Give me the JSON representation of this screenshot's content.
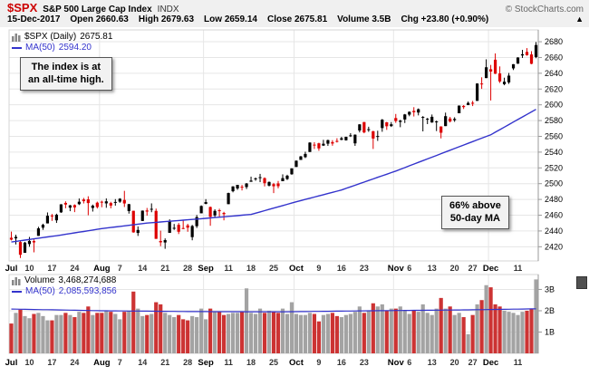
{
  "header": {
    "symbol": "$SPX",
    "name": "S&P 500 Large Cap Index",
    "exchange": "INDX",
    "credit": "© StockCharts.com",
    "date": "15-Dec-2017",
    "quote": {
      "open_label": "Open",
      "open": "2660.63",
      "high_label": "High",
      "high": "2679.63",
      "low_label": "Low",
      "low": "2659.14",
      "close_label": "Close",
      "close": "2675.81",
      "volume_label": "Volume",
      "volume": "3.5B",
      "chg_label": "Chg",
      "chg_value": "+23.80 (+0.90%)",
      "arrow": "▲"
    }
  },
  "legend": {
    "price_label": "$SPX (Daily)",
    "price_value": "2675.81",
    "ma_label": "MA(50)",
    "ma_value": "2594.20"
  },
  "volume_legend": {
    "label": "Volume",
    "value": "3,468,274,688",
    "ma_label": "MA(50)",
    "ma_value": "2,085,593,856"
  },
  "annotations": {
    "ath_line1": "The index is at",
    "ath_line2": "an all-time high.",
    "ma_line1": "66% above",
    "ma_line2": "50-day MA"
  },
  "colors": {
    "up": "#000000",
    "down": "#dd0000",
    "vol_up": "#a3a3a3",
    "vol_down": "#cc3333",
    "ma": "#3333cc",
    "grid": "#e6e6e6",
    "axis": "#999999",
    "symbol_red": "#cc0000",
    "header_bg": "#f0f0f0"
  },
  "chart_data": {
    "type": "candlestick",
    "symbol": "$SPX",
    "period": "Daily",
    "price_axis": {
      "min": 2402,
      "max": 2695,
      "grid_min": 2420,
      "grid_max": 2680,
      "grid_step": 20
    },
    "volume_axis": {
      "max": 3.7,
      "grid": [
        1,
        2,
        3
      ],
      "grid_labels": [
        "1B",
        "2B",
        "3B"
      ],
      "unit": "billions of shares"
    },
    "x_ticks": [
      {
        "i": 0,
        "l": "Jul",
        "m": true
      },
      {
        "i": 4,
        "l": "10"
      },
      {
        "i": 9,
        "l": "17"
      },
      {
        "i": 14,
        "l": "24"
      },
      {
        "i": 20,
        "l": "Aug",
        "m": true
      },
      {
        "i": 24,
        "l": "7"
      },
      {
        "i": 29,
        "l": "14"
      },
      {
        "i": 34,
        "l": "21"
      },
      {
        "i": 39,
        "l": "28"
      },
      {
        "i": 43,
        "l": "Sep",
        "m": true
      },
      {
        "i": 48,
        "l": "11"
      },
      {
        "i": 53,
        "l": "18"
      },
      {
        "i": 58,
        "l": "25"
      },
      {
        "i": 63,
        "l": "Oct",
        "m": true
      },
      {
        "i": 68,
        "l": "9"
      },
      {
        "i": 73,
        "l": "16"
      },
      {
        "i": 78,
        "l": "23"
      },
      {
        "i": 85,
        "l": "Nov",
        "m": true
      },
      {
        "i": 88,
        "l": "6"
      },
      {
        "i": 93,
        "l": "13"
      },
      {
        "i": 98,
        "l": "20"
      },
      {
        "i": 102,
        "l": "27"
      },
      {
        "i": 106,
        "l": "Dec",
        "m": true
      },
      {
        "i": 112,
        "l": "11"
      }
    ],
    "month_lines": [
      0,
      20,
      43,
      63,
      85,
      106
    ],
    "ohlcv_format": [
      "open",
      "high",
      "low",
      "close",
      "volume_billions"
    ],
    "ohlcv": [
      [
        2431.4,
        2439.2,
        2428.0,
        2429.0,
        1.4
      ],
      [
        2430.6,
        2435.2,
        2422.9,
        2432.5,
        1.9
      ],
      [
        2426.0,
        2427.3,
        2405.7,
        2409.8,
        2.05
      ],
      [
        2412.3,
        2426.2,
        2412.3,
        2425.2,
        1.75
      ],
      [
        2423.4,
        2432.4,
        2420.0,
        2427.4,
        1.65
      ],
      [
        2427.2,
        2429.4,
        2412.9,
        2425.5,
        1.85
      ],
      [
        2433.8,
        2445.3,
        2433.8,
        2443.3,
        1.9
      ],
      [
        2444.2,
        2449.2,
        2441.4,
        2447.8,
        1.75
      ],
      [
        2449.6,
        2463.5,
        2449.6,
        2459.3,
        1.55
      ],
      [
        2459.6,
        2461.6,
        2452.8,
        2459.1,
        1.55
      ],
      [
        2453.5,
        2461.9,
        2450.2,
        2460.6,
        1.8
      ],
      [
        2463.6,
        2474.0,
        2463.0,
        2473.8,
        1.8
      ],
      [
        2475.6,
        2477.6,
        2468.8,
        2473.5,
        1.9
      ],
      [
        2469.6,
        2473.0,
        2465.1,
        2472.5,
        1.8
      ],
      [
        2472.8,
        2473.7,
        2463.9,
        2469.9,
        1.7
      ],
      [
        2474.0,
        2481.2,
        2472.9,
        2477.1,
        1.95
      ],
      [
        2479.9,
        2481.9,
        2474.9,
        2477.8,
        1.9
      ],
      [
        2480.1,
        2484.0,
        2459.9,
        2475.4,
        2.2
      ],
      [
        2469.2,
        2473.5,
        2464.6,
        2472.1,
        1.8
      ],
      [
        2475.9,
        2477.2,
        2468.5,
        2470.3,
        1.9
      ],
      [
        2477.1,
        2478.4,
        2470.1,
        2476.3,
        1.9
      ],
      [
        2475.0,
        2481.3,
        2469.4,
        2477.6,
        2.0
      ],
      [
        2475.4,
        2477.0,
        2468.7,
        2472.2,
        1.95
      ],
      [
        2476.0,
        2480.4,
        2472.1,
        2476.8,
        1.85
      ],
      [
        2477.2,
        2481.6,
        2475.7,
        2480.9,
        1.6
      ],
      [
        2479.3,
        2490.9,
        2470.4,
        2474.9,
        1.95
      ],
      [
        2465.3,
        2474.4,
        2462.0,
        2474.0,
        2.0
      ],
      [
        2465.6,
        2465.6,
        2437.8,
        2438.2,
        2.9
      ],
      [
        2437.5,
        2445.8,
        2433.7,
        2441.3,
        2.1
      ],
      [
        2452.7,
        2466.0,
        2452.7,
        2465.8,
        1.75
      ],
      [
        2466.0,
        2469.2,
        2459.4,
        2464.6,
        1.8
      ],
      [
        2468.1,
        2475.0,
        2463.8,
        2468.1,
        1.85
      ],
      [
        2465.5,
        2468.4,
        2430.0,
        2430.0,
        2.4
      ],
      [
        2427.3,
        2440.4,
        2420.7,
        2425.6,
        2.3
      ],
      [
        2425.4,
        2430.6,
        2417.4,
        2428.4,
        1.9
      ],
      [
        2437.6,
        2454.8,
        2437.6,
        2452.5,
        1.8
      ],
      [
        2444.0,
        2448.9,
        2441.4,
        2444.0,
        1.7
      ],
      [
        2447.8,
        2450.1,
        2436.1,
        2439.0,
        1.8
      ],
      [
        2443.7,
        2453.8,
        2442.4,
        2443.1,
        1.6
      ],
      [
        2447.1,
        2449.1,
        2439.0,
        2444.2,
        1.55
      ],
      [
        2432.2,
        2447.7,
        2428.2,
        2446.3,
        1.75
      ],
      [
        2446.1,
        2460.3,
        2443.8,
        2457.6,
        1.7
      ],
      [
        2462.4,
        2472.5,
        2462.4,
        2471.7,
        2.1
      ],
      [
        2474.4,
        2480.4,
        2473.8,
        2476.6,
        1.6
      ],
      [
        2470.4,
        2471.0,
        2446.6,
        2457.9,
        2.1
      ],
      [
        2459.7,
        2467.5,
        2456.5,
        2465.5,
        1.95
      ],
      [
        2466.3,
        2468.2,
        2457.1,
        2465.1,
        1.95
      ],
      [
        2462.9,
        2464.3,
        2453.5,
        2461.4,
        1.8
      ],
      [
        2474.0,
        2488.6,
        2474.0,
        2488.1,
        1.85
      ],
      [
        2490.4,
        2496.8,
        2489.0,
        2496.5,
        1.9
      ],
      [
        2493.9,
        2498.5,
        2492.1,
        2498.4,
        1.9
      ],
      [
        2496.1,
        2498.4,
        2491.4,
        2495.6,
        1.95
      ],
      [
        2495.7,
        2500.8,
        2493.2,
        2500.2,
        3.05
      ],
      [
        2502.4,
        2508.9,
        2502.4,
        2503.9,
        1.9
      ],
      [
        2506.1,
        2507.8,
        2503.6,
        2506.7,
        1.85
      ],
      [
        2507.1,
        2512.4,
        2501.9,
        2508.2,
        2.1
      ],
      [
        2507.0,
        2508.0,
        2496.5,
        2500.6,
        1.9
      ],
      [
        2497.5,
        2502.7,
        2496.5,
        2502.2,
        2.0
      ],
      [
        2499.4,
        2501.0,
        2488.0,
        2496.7,
        1.95
      ],
      [
        2500.3,
        2503.4,
        2494.1,
        2496.8,
        1.9
      ],
      [
        2503.1,
        2511.8,
        2503.1,
        2507.0,
        2.1
      ],
      [
        2505.9,
        2511.3,
        2504.6,
        2510.1,
        1.85
      ],
      [
        2511.9,
        2519.4,
        2511.3,
        2519.4,
        2.4
      ],
      [
        2521.2,
        2529.5,
        2521.2,
        2529.1,
        1.85
      ],
      [
        2530.1,
        2535.1,
        2530.1,
        2534.6,
        1.8
      ],
      [
        2533.6,
        2540.5,
        2532.4,
        2537.7,
        1.8
      ],
      [
        2540.2,
        2552.5,
        2540.2,
        2552.1,
        1.9
      ],
      [
        2549.5,
        2552.6,
        2544.0,
        2549.3,
        1.85
      ],
      [
        2551.2,
        2551.9,
        2541.7,
        2544.7,
        1.5
      ],
      [
        2548.3,
        2555.6,
        2547.8,
        2550.6,
        1.8
      ],
      [
        2550.7,
        2555.8,
        2547.9,
        2555.2,
        1.85
      ],
      [
        2552.7,
        2555.2,
        2548.1,
        2550.9,
        1.9
      ],
      [
        2554.2,
        2557.6,
        2552.2,
        2553.2,
        1.75
      ],
      [
        2555.6,
        2559.4,
        2555.1,
        2557.6,
        1.7
      ],
      [
        2555.0,
        2559.6,
        2554.6,
        2559.4,
        1.8
      ],
      [
        2560.9,
        2564.0,
        2559.2,
        2561.3,
        1.85
      ],
      [
        2551.1,
        2562.5,
        2547.9,
        2562.1,
        1.95
      ],
      [
        2567.4,
        2575.4,
        2565.0,
        2575.2,
        2.2
      ],
      [
        2578.1,
        2578.3,
        2563.9,
        2565.0,
        1.9
      ],
      [
        2568.2,
        2572.2,
        2565.7,
        2569.1,
        2.0
      ],
      [
        2566.5,
        2567.0,
        2544.0,
        2557.2,
        2.35
      ],
      [
        2560.0,
        2567.1,
        2554.2,
        2560.4,
        2.2
      ],
      [
        2570.5,
        2582.0,
        2565.8,
        2581.1,
        2.3
      ],
      [
        2577.8,
        2578.3,
        2568.2,
        2572.8,
        2.0
      ],
      [
        2573.0,
        2578.1,
        2571.9,
        2575.3,
        2.1
      ],
      [
        2583.2,
        2588.4,
        2577.1,
        2579.4,
        2.1
      ],
      [
        2578.3,
        2581.0,
        2571.6,
        2579.9,
        2.2
      ],
      [
        2581.4,
        2588.4,
        2576.9,
        2587.8,
        2.0
      ],
      [
        2587.5,
        2591.7,
        2585.5,
        2591.1,
        1.85
      ],
      [
        2592.3,
        2597.0,
        2585.2,
        2590.6,
        2.0
      ],
      [
        2590.2,
        2595.4,
        2586.6,
        2594.4,
        1.95
      ],
      [
        2584.2,
        2585.7,
        2566.3,
        2584.6,
        2.3
      ],
      [
        2582.0,
        2583.4,
        2575.5,
        2582.3,
        1.9
      ],
      [
        2577.6,
        2587.7,
        2577.2,
        2584.8,
        1.8
      ],
      [
        2578.0,
        2580.0,
        2566.7,
        2578.9,
        2.1
      ],
      [
        2572.5,
        2572.8,
        2557.4,
        2564.6,
        2.6
      ],
      [
        2573.0,
        2590.1,
        2573.0,
        2585.6,
        2.1
      ],
      [
        2582.6,
        2584.7,
        2577.6,
        2578.9,
        2.2
      ],
      [
        2580.6,
        2584.2,
        2578.4,
        2582.1,
        1.8
      ],
      [
        2589.3,
        2599.2,
        2589.3,
        2599.0,
        1.9
      ],
      [
        2598.6,
        2599.6,
        2594.7,
        2597.1,
        1.7
      ],
      [
        2599.6,
        2604.2,
        2599.6,
        2602.4,
        0.9
      ],
      [
        2602.6,
        2605.0,
        2598.4,
        2601.4,
        1.8
      ],
      [
        2605.0,
        2627.3,
        2605.0,
        2627.0,
        2.3
      ],
      [
        2627.0,
        2634.9,
        2620.2,
        2626.1,
        2.5
      ],
      [
        2633.9,
        2657.7,
        2633.9,
        2647.6,
        3.2
      ],
      [
        2645.1,
        2650.6,
        2605.5,
        2642.2,
        3.1
      ],
      [
        2657.2,
        2665.2,
        2639.0,
        2639.4,
        2.3
      ],
      [
        2639.8,
        2648.7,
        2627.7,
        2629.6,
        2.2
      ],
      [
        2626.2,
        2634.4,
        2624.8,
        2629.3,
        2.0
      ],
      [
        2628.4,
        2640.4,
        2626.5,
        2637.0,
        1.95
      ],
      [
        2646.2,
        2651.6,
        2644.1,
        2651.5,
        1.9
      ],
      [
        2652.2,
        2660.3,
        2651.9,
        2660.0,
        1.8
      ],
      [
        2662.6,
        2669.7,
        2659.4,
        2664.1,
        1.95
      ],
      [
        2667.1,
        2671.9,
        2662.3,
        2662.9,
        2.0
      ],
      [
        2663.9,
        2668.0,
        2651.5,
        2652.0,
        2.1
      ],
      [
        2660.6,
        2679.6,
        2659.1,
        2675.8,
        3.47
      ]
    ],
    "ma50_price": [
      [
        0,
        2426
      ],
      [
        10,
        2434
      ],
      [
        20,
        2443
      ],
      [
        30,
        2450
      ],
      [
        43,
        2456
      ],
      [
        53,
        2461
      ],
      [
        63,
        2477
      ],
      [
        73,
        2492
      ],
      [
        85,
        2516
      ],
      [
        95,
        2538
      ],
      [
        106,
        2562
      ],
      [
        116,
        2594.2
      ]
    ],
    "ma50_volume": [
      [
        0,
        2.08
      ],
      [
        20,
        2.0
      ],
      [
        40,
        1.96
      ],
      [
        60,
        1.95
      ],
      [
        80,
        2.0
      ],
      [
        100,
        2.04
      ],
      [
        110,
        2.07
      ],
      [
        116,
        2.09
      ]
    ]
  }
}
